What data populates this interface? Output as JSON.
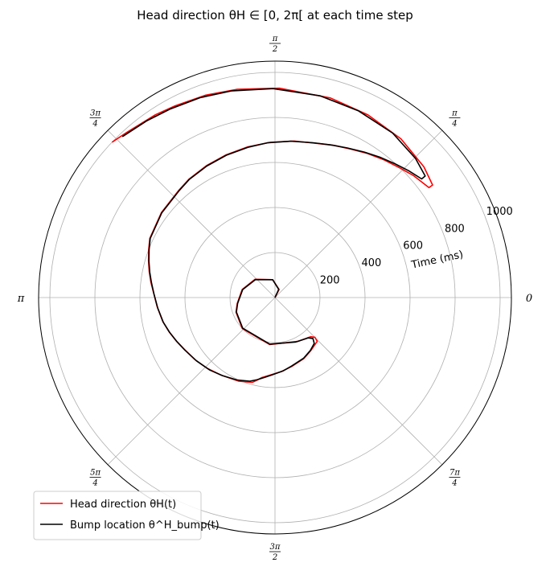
{
  "chart_data": {
    "type": "polar-line",
    "title": "Head direction θH ∈ [0, 2π[ at each time step",
    "radial_axis": {
      "label": "Time (ms)",
      "range": [
        0,
        1050
      ],
      "ticks": [
        200,
        400,
        600,
        800,
        1000
      ],
      "tick_labels": [
        "200",
        "400",
        "600",
        "800",
        "1000"
      ]
    },
    "angular_axis": {
      "units": "radians",
      "ticks": [
        0,
        0.785398,
        1.570796,
        2.356194,
        3.141593,
        3.926991,
        4.712389,
        5.497787
      ],
      "tick_labels": [
        {
          "num": "0",
          "den": ""
        },
        {
          "num": "π",
          "den": "4"
        },
        {
          "num": "π",
          "den": "2"
        },
        {
          "num": "3π",
          "den": "4"
        },
        {
          "num": "π",
          "den": ""
        },
        {
          "num": "5π",
          "den": "4"
        },
        {
          "num": "3π",
          "den": "2"
        },
        {
          "num": "7π",
          "den": "4"
        }
      ]
    },
    "grid": true,
    "legend": {
      "position": "lower-left",
      "entries": [
        "Head direction θH(t)",
        "Bump location θ^H_bump(t)"
      ]
    },
    "series": [
      {
        "name": "Head direction θH(t)",
        "color": "#ff0000",
        "theta": [
          0.0,
          1.1,
          1.7,
          2.4,
          2.9,
          3.3,
          3.5,
          3.9,
          4.6,
          5.2,
          5.45,
          5.5,
          5.48,
          5.3,
          5.15,
          4.95,
          4.8,
          4.65,
          4.55,
          4.5,
          4.45,
          4.3,
          4.1,
          3.95,
          3.8,
          3.65,
          3.55,
          3.45,
          3.35,
          3.22,
          3.1,
          3.02,
          2.94,
          2.86,
          2.78,
          2.7,
          2.5,
          2.3,
          2.2,
          2.05,
          1.9,
          1.75,
          1.6,
          1.45,
          1.3,
          1.2,
          1.1,
          1.0,
          0.9,
          0.8,
          0.72,
          0.62,
          0.62,
          0.72,
          0.9,
          1.1,
          1.3,
          1.55,
          1.75,
          1.9,
          2.05,
          2.15,
          2.3,
          2.38
        ],
        "r": [
          0,
          40,
          80,
          120,
          150,
          170,
          185,
          200,
          210,
          220,
          235,
          250,
          270,
          285,
          300,
          315,
          330,
          345,
          360,
          375,
          390,
          405,
          420,
          435,
          450,
          465,
          480,
          495,
          510,
          525,
          540,
          555,
          570,
          585,
          600,
          615,
          630,
          640,
          650,
          660,
          670,
          680,
          690,
          700,
          710,
          725,
          740,
          760,
          780,
          800,
          820,
          840,
          860,
          880,
          900,
          910,
          920,
          930,
          940,
          950,
          960,
          970,
          985,
          1000
        ]
      },
      {
        "name": "Bump location θ^H_bump(t)",
        "color": "#000000",
        "theta": [
          0.0,
          1.15,
          1.7,
          2.4,
          2.9,
          3.3,
          3.5,
          3.9,
          4.6,
          5.15,
          5.4,
          5.46,
          5.42,
          5.3,
          5.15,
          4.95,
          4.82,
          4.68,
          4.58,
          4.5,
          4.42,
          4.28,
          4.12,
          3.98,
          3.82,
          3.67,
          3.56,
          3.46,
          3.36,
          3.23,
          3.11,
          3.02,
          2.94,
          2.86,
          2.78,
          2.7,
          2.5,
          2.3,
          2.2,
          2.05,
          1.9,
          1.75,
          1.62,
          1.47,
          1.33,
          1.22,
          1.12,
          1.02,
          0.93,
          0.84,
          0.76,
          0.68,
          0.68,
          0.78,
          0.95,
          1.15,
          1.35,
          1.58,
          1.78,
          1.93,
          2.08,
          2.2,
          2.33
        ],
        "r": [
          0,
          40,
          80,
          118,
          148,
          168,
          183,
          198,
          208,
          218,
          232,
          248,
          268,
          283,
          298,
          313,
          328,
          343,
          358,
          373,
          388,
          403,
          418,
          433,
          448,
          463,
          478,
          493,
          508,
          523,
          538,
          553,
          568,
          583,
          598,
          613,
          628,
          638,
          648,
          658,
          668,
          678,
          688,
          698,
          708,
          722,
          738,
          758,
          778,
          798,
          818,
          838,
          858,
          878,
          898,
          908,
          918,
          928,
          938,
          948,
          958,
          970,
          985
        ]
      }
    ]
  }
}
